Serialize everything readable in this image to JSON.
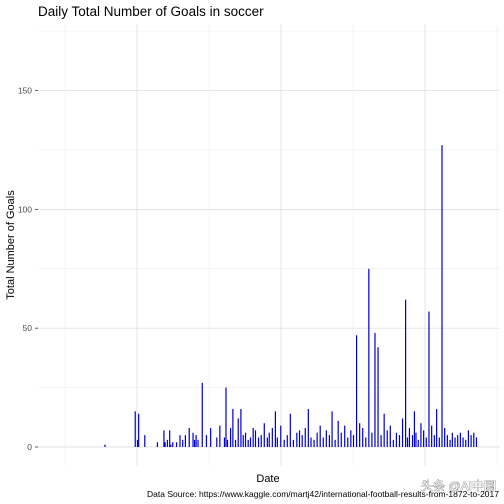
{
  "chart_data": {
    "type": "bar",
    "title": "Daily Total Number of Goals in soccer",
    "xlabel": "Date",
    "ylabel": "Total Number of Goals",
    "caption": "Data Source: https://www.kaggle.com/martj42/international-football-results-from-1872-to-2017",
    "ylim": [
      -8,
      178
    ],
    "yticks": [
      0,
      50,
      100,
      150
    ],
    "grid": true,
    "bar_color": "#0000cd",
    "x_positions": [
      2.6,
      10.5,
      11.1,
      11.4,
      13.0,
      16.3,
      18.0,
      18.3,
      18.9,
      19.5,
      19.8,
      20.3,
      21.3,
      22.2,
      22.9,
      23.6,
      24.6,
      25.6,
      26.0,
      26.4,
      26.9,
      28.0,
      29.1,
      30.2,
      31.8,
      32.6,
      33.8,
      34.2,
      34.6,
      35.4,
      36.0,
      36.7,
      37.4,
      38.1,
      38.7,
      39.3,
      40.0,
      40.6,
      41.3,
      41.9,
      42.7,
      43.4,
      44.2,
      45.0,
      45.5,
      46.3,
      47.1,
      47.6,
      48.5,
      49.4,
      50.2,
      51.0,
      51.8,
      52.7,
      53.4,
      54.1,
      54.9,
      55.7,
      56.4,
      57.2,
      58.0,
      58.8,
      59.6,
      60.4,
      61.2,
      61.9,
      62.7,
      63.5,
      64.3,
      65.2,
      66.0,
      66.8,
      67.5,
      68.3,
      69.1,
      69.9,
      70.7,
      71.5,
      72.3,
      73.1,
      73.9,
      74.7,
      75.5,
      76.3,
      77.1,
      77.9,
      78.7,
      79.5,
      80.3,
      81.1,
      81.6,
      82.1,
      82.9,
      83.4,
      83.8,
      84.4,
      85.1,
      85.8,
      86.5,
      87.2,
      87.9,
      88.6,
      89.2,
      89.9,
      90.6,
      91.3,
      92.0,
      92.7,
      93.3,
      94.0,
      94.7,
      95.4,
      96.1,
      96.8,
      97.5,
      98.2,
      98.9,
      99.6
    ],
    "values": [
      1,
      15,
      3,
      14,
      5,
      2,
      7,
      2,
      3,
      7,
      1,
      2,
      2,
      5,
      3,
      5,
      8,
      6,
      3,
      5,
      3,
      27,
      5,
      8,
      4,
      9,
      4,
      25,
      3,
      8,
      16,
      3,
      12,
      16,
      5,
      6,
      3,
      4,
      8,
      7,
      4,
      5,
      10,
      4,
      6,
      8,
      15,
      4,
      9,
      3,
      5,
      14,
      3,
      6,
      7,
      5,
      8,
      16,
      4,
      3,
      6,
      9,
      4,
      7,
      5,
      15,
      3,
      11,
      6,
      9,
      4,
      7,
      5,
      47,
      10,
      8,
      4,
      75,
      6,
      48,
      42,
      5,
      14,
      7,
      9,
      3,
      6,
      5,
      12,
      62,
      4,
      8,
      5,
      15,
      6,
      3,
      10,
      7,
      4,
      57,
      9,
      5,
      16,
      4,
      127,
      8,
      5,
      3,
      6,
      4,
      5,
      6,
      4,
      3,
      7,
      5,
      6,
      4
    ]
  },
  "watermark": "头条 @AI中国"
}
